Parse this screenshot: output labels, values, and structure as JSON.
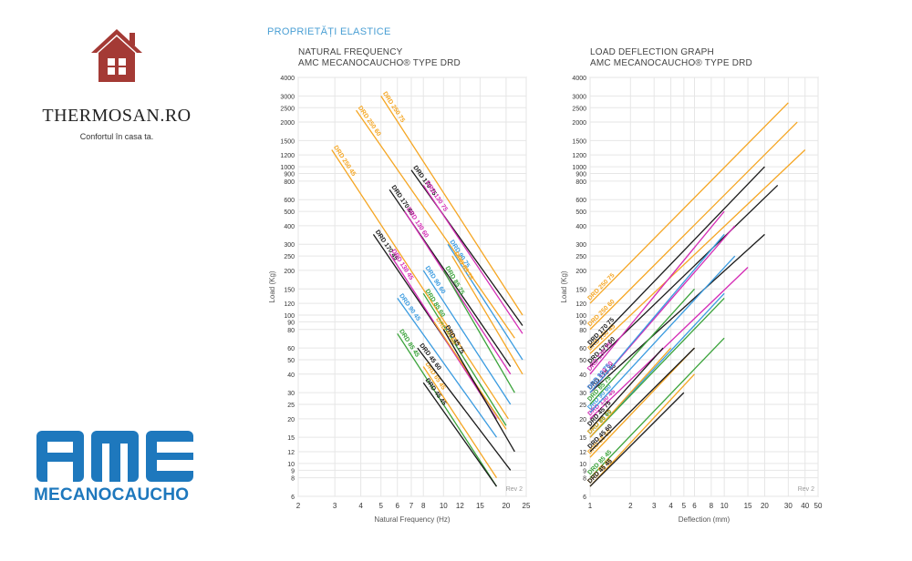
{
  "section_title": "PROPRIETĂȚI ELASTICE",
  "brand": {
    "name": "THERMOSAN.RO",
    "tagline": "Confortul în casa ta.",
    "logo_icon": "house-icon",
    "logo_color": "#a43a35"
  },
  "amc": {
    "letters": "AMC",
    "name": "MECANOCAUCHO",
    "color": "#1e78bd"
  },
  "colors": {
    "DRD 250 75": "#f5a623",
    "DRD 250 60": "#f5a623",
    "DRD 250 45": "#f5a623",
    "DRD 170 75": "#1a1a1a",
    "DRD 170 60": "#1a1a1a",
    "DRD 170 45": "#1a1a1a",
    "DRD 130 75": "#d42bb5",
    "DRD 130 60": "#d42bb5",
    "DRD 130 45": "#d42bb5",
    "DRD 90 75": "#3a9be0",
    "DRD 90 60": "#3a9be0",
    "DRD 90 45": "#3a9be0",
    "DRD 85 75": "#3aa33a",
    "DRD 85 60": "#3aa33a",
    "DRD 85 45": "#3aa33a",
    "DRD 65 75": "#f5a623",
    "DRD 65 60": "#f5a623",
    "DRD 65 45": "#f5a623",
    "DRD 45 75": "#1a1a1a",
    "DRD 45 60": "#1a1a1a",
    "DRD 45 45": "#1a1a1a"
  },
  "chart_data": [
    {
      "type": "line",
      "title": "NATURAL FREQUENCY",
      "subtitle": "AMC MECANOCAUCHO® TYPE DRD",
      "xlabel": "Natural Frequency (Hz)",
      "ylabel": "Load (Kg)",
      "xscale": "log",
      "yscale": "log",
      "xlim": [
        2,
        25
      ],
      "ylim": [
        6,
        4000
      ],
      "xticks": [
        "2",
        "3",
        "4",
        "5",
        "6",
        "7",
        "8",
        "10",
        "12",
        "15",
        "20",
        "25"
      ],
      "yticks": [
        "6",
        "8",
        "9",
        "10",
        "12",
        "15",
        "20",
        "25",
        "30",
        "40",
        "50",
        "60",
        "80",
        "90",
        "100",
        "120",
        "150",
        "200",
        "250",
        "300",
        "400",
        "500",
        "600",
        "800",
        "900",
        "1000",
        "1200",
        "1500",
        "2000",
        "2500",
        "3000",
        "4000"
      ],
      "note": "Rev 2",
      "grid": true,
      "series": [
        {
          "name": "DRD 250 75",
          "x": [
            5.0,
            24.0
          ],
          "y": [
            3000,
            100
          ]
        },
        {
          "name": "DRD 250 60",
          "x": [
            3.8,
            22.0
          ],
          "y": [
            2400,
            70
          ]
        },
        {
          "name": "DRD 250 45",
          "x": [
            2.9,
            20.5
          ],
          "y": [
            1300,
            20
          ]
        },
        {
          "name": "DRD 170 75",
          "x": [
            7.0,
            24.0
          ],
          "y": [
            950,
            85
          ]
        },
        {
          "name": "DRD 170 60",
          "x": [
            5.5,
            21.0
          ],
          "y": [
            700,
            45
          ]
        },
        {
          "name": "DRD 170 45",
          "x": [
            4.6,
            18.5
          ],
          "y": [
            350,
            20
          ]
        },
        {
          "name": "DRD 130 75",
          "x": [
            8.0,
            24.0
          ],
          "y": [
            750,
            75
          ]
        },
        {
          "name": "DRD 130 60",
          "x": [
            6.5,
            21.0
          ],
          "y": [
            500,
            40
          ]
        },
        {
          "name": "DRD 130 45",
          "x": [
            5.5,
            18.0
          ],
          "y": [
            260,
            20
          ]
        },
        {
          "name": "DRD 90 75",
          "x": [
            10.5,
            24.0
          ],
          "y": [
            300,
            50
          ]
        },
        {
          "name": "DRD 90 60",
          "x": [
            8.0,
            21.0
          ],
          "y": [
            200,
            25
          ]
        },
        {
          "name": "DRD 90 45",
          "x": [
            6.0,
            18.0
          ],
          "y": [
            130,
            15
          ]
        },
        {
          "name": "DRD 85 75",
          "x": [
            10.0,
            22.0
          ],
          "y": [
            200,
            30
          ]
        },
        {
          "name": "DRD 85 60",
          "x": [
            8.0,
            20.0
          ],
          "y": [
            140,
            18
          ]
        },
        {
          "name": "DRD 85 45",
          "x": [
            6.0,
            18.0
          ],
          "y": [
            75,
            7
          ]
        },
        {
          "name": "DRD 65 75",
          "x": [
            11.0,
            24.0
          ],
          "y": [
            250,
            40
          ]
        },
        {
          "name": "DRD 65 60",
          "x": [
            9.0,
            20.0
          ],
          "y": [
            90,
            17
          ]
        },
        {
          "name": "DRD 65 45",
          "x": [
            8.0,
            18.0
          ],
          "y": [
            45,
            8
          ]
        },
        {
          "name": "DRD 45 75",
          "x": [
            10.0,
            22.0
          ],
          "y": [
            80,
            12
          ]
        },
        {
          "name": "DRD 45 60",
          "x": [
            7.5,
            21.0
          ],
          "y": [
            60,
            9
          ]
        },
        {
          "name": "DRD 45 45",
          "x": [
            8.0,
            18.0
          ],
          "y": [
            35,
            7
          ]
        }
      ]
    },
    {
      "type": "line",
      "title": "LOAD DEFLECTION GRAPH",
      "subtitle": "AMC MECANOCAUCHO® TYPE DRD",
      "xlabel": "Deflection (mm)",
      "ylabel": "Load (Kg)",
      "xscale": "log",
      "yscale": "log",
      "xlim": [
        1,
        50
      ],
      "ylim": [
        6,
        4000
      ],
      "xticks": [
        "1",
        "2",
        "3",
        "4",
        "5",
        "6",
        "8",
        "10",
        "15",
        "20",
        "30",
        "40",
        "50"
      ],
      "yticks": [
        "6",
        "8",
        "9",
        "10",
        "12",
        "15",
        "20",
        "25",
        "30",
        "40",
        "50",
        "60",
        "80",
        "90",
        "100",
        "120",
        "150",
        "200",
        "250",
        "300",
        "400",
        "500",
        "600",
        "800",
        "900",
        "1000",
        "1200",
        "1500",
        "2000",
        "2500",
        "3000",
        "4000"
      ],
      "note": "Rev 2",
      "grid": true,
      "series": [
        {
          "name": "DRD 250 75",
          "x": [
            1,
            30
          ],
          "y": [
            120,
            2700
          ]
        },
        {
          "name": "DRD 250 60",
          "x": [
            1,
            35
          ],
          "y": [
            80,
            2000
          ]
        },
        {
          "name": "DRD 250 45",
          "x": [
            1,
            40
          ],
          "y": [
            55,
            1300
          ]
        },
        {
          "name": "DRD 170 75",
          "x": [
            1,
            20
          ],
          "y": [
            60,
            1000
          ]
        },
        {
          "name": "DRD 170 60",
          "x": [
            1,
            25
          ],
          "y": [
            45,
            750
          ]
        },
        {
          "name": "DRD 170 45",
          "x": [
            1,
            20
          ],
          "y": [
            30,
            350
          ]
        },
        {
          "name": "DRD 130 75",
          "x": [
            1,
            10
          ],
          "y": [
            40,
            500
          ]
        },
        {
          "name": "DRD 130 60",
          "x": [
            1,
            12
          ],
          "y": [
            30,
            400
          ]
        },
        {
          "name": "DRD 130 45",
          "x": [
            1,
            15
          ],
          "y": [
            20,
            210
          ]
        },
        {
          "name": "DRD 90 75",
          "x": [
            1,
            10
          ],
          "y": [
            30,
            350
          ]
        },
        {
          "name": "DRD 90 60",
          "x": [
            1,
            12
          ],
          "y": [
            22,
            250
          ]
        },
        {
          "name": "DRD 90 45",
          "x": [
            1,
            10
          ],
          "y": [
            15,
            140
          ]
        },
        {
          "name": "DRD 85 75",
          "x": [
            1,
            6
          ],
          "y": [
            25,
            150
          ]
        },
        {
          "name": "DRD 85 60",
          "x": [
            1,
            10
          ],
          "y": [
            15,
            130
          ]
        },
        {
          "name": "DRD 85 45",
          "x": [
            1,
            10
          ],
          "y": [
            8,
            70
          ]
        },
        {
          "name": "DRD 65 75",
          "x": [
            1,
            4
          ],
          "y": [
            15,
            60
          ]
        },
        {
          "name": "DRD 65 60",
          "x": [
            1,
            6
          ],
          "y": [
            11,
            60
          ]
        },
        {
          "name": "DRD 65 45",
          "x": [
            1,
            6
          ],
          "y": [
            7,
            40
          ]
        },
        {
          "name": "DRD 45 75",
          "x": [
            1,
            3.5
          ],
          "y": [
            17,
            60
          ]
        },
        {
          "name": "DRD 45 60",
          "x": [
            1,
            6
          ],
          "y": [
            12,
            60
          ]
        },
        {
          "name": "DRD 45 45",
          "x": [
            1,
            5
          ],
          "y": [
            7,
            30
          ]
        }
      ]
    }
  ]
}
